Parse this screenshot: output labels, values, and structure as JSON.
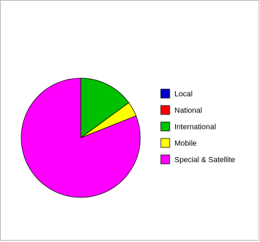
{
  "chart_data": {
    "type": "pie",
    "categories": [
      "Local",
      "National",
      "International",
      "Mobile",
      "Special & Satellite"
    ],
    "values": [
      0,
      0,
      15,
      4,
      81
    ],
    "colors": [
      "#0000c8",
      "#ff0000",
      "#00c000",
      "#ffff00",
      "#ff00ff"
    ],
    "start_angle": "12 o'clock",
    "direction": "clockwise",
    "legend_position": "right",
    "title": ""
  }
}
